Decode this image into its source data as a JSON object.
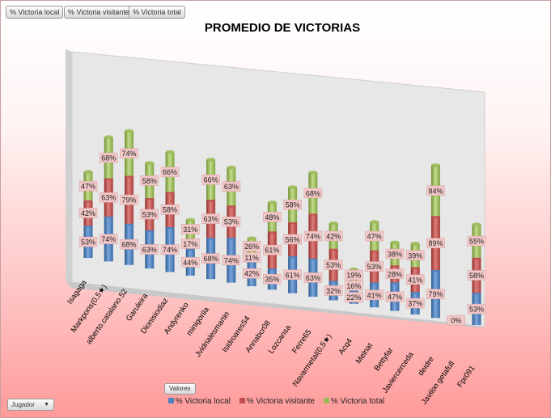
{
  "filter_buttons": [
    {
      "label": "% Victoria local"
    },
    {
      "label": "% Victoria visitante"
    },
    {
      "label": "% Victoria total"
    }
  ],
  "valores_label": "Valores",
  "jugador_label": "Jugador",
  "colors": {
    "local": "#4f81bd",
    "visitante": "#c0504d",
    "total": "#9bbb59"
  },
  "chart_data": {
    "type": "bar",
    "stacked": true,
    "title": "PROMEDIO DE VICTORIAS",
    "xlabel": "",
    "ylabel": "",
    "categories": [
      "Isagaga",
      "Markpons(0,5★)",
      "alberto.catalano.52",
      "Garuleira",
      "Dionisiodiaz",
      "Andyrenko",
      "minigorila",
      "Jvidrialesmartin",
      "Isidroares54",
      "Annabcr08",
      "Lozcansa",
      "Ferre65",
      "Navarmetal(0,5★)",
      "Acq4",
      "Melnat",
      "Bettyfar",
      "Javiercerceda",
      "deidre",
      "Javilon getafull",
      "Fpr091"
    ],
    "series": [
      {
        "name": "% Victoria local",
        "values": [
          "53%",
          "74%",
          "68%",
          "63%",
          "74%",
          "44%",
          "68%",
          "74%",
          "42%",
          "35%",
          "61%",
          "63%",
          "32%",
          "22%",
          "41%",
          "47%",
          "37%",
          "79%",
          "0%",
          "53%"
        ]
      },
      {
        "name": "% Victoria visitante",
        "values": [
          "42%",
          "63%",
          "79%",
          "53%",
          "58%",
          "17%",
          "63%",
          "53%",
          "11%",
          "61%",
          "56%",
          "74%",
          "53%",
          "16%",
          "53%",
          "28%",
          "41%",
          "89%",
          "",
          "58%"
        ]
      },
      {
        "name": "% Victoria total",
        "values": [
          "47%",
          "68%",
          "74%",
          "58%",
          "66%",
          "31%",
          "66%",
          "63%",
          "26%",
          "48%",
          "58%",
          "68%",
          "42%",
          "19%",
          "47%",
          "38%",
          "39%",
          "84%",
          "",
          "55%"
        ]
      }
    ],
    "legend_position": "bottom"
  }
}
